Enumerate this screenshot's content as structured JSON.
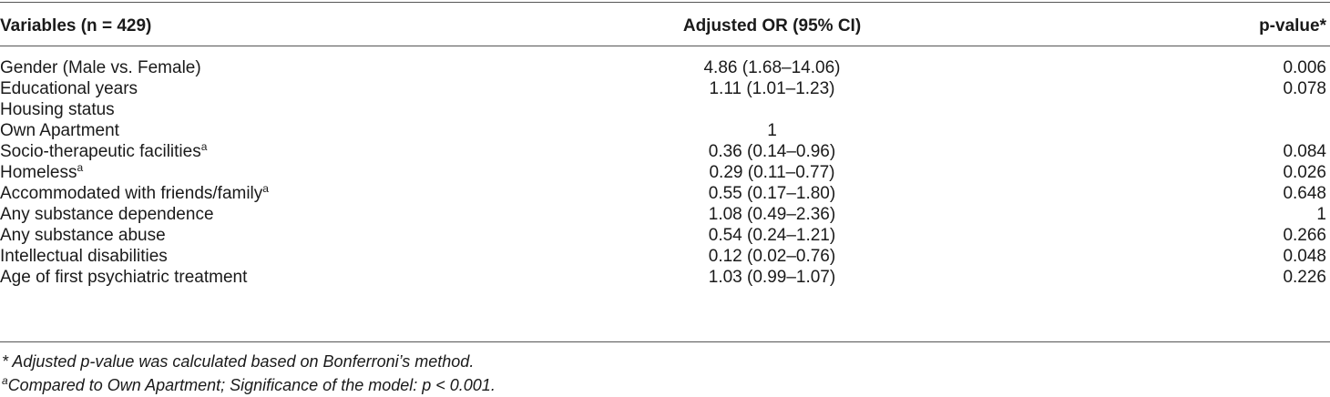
{
  "table": {
    "headers": [
      "Variables (n = 429)",
      "Adjusted OR (95% CI)",
      "p-value*"
    ],
    "rows": [
      {
        "variable": "Gender (Male vs. Female)",
        "or": "4.86 (1.68–14.06)",
        "p": "0.006"
      },
      {
        "variable": "Educational years",
        "or": "1.11 (1.01–1.23)",
        "p": "0.078"
      },
      {
        "variable": "Housing status",
        "or": "",
        "p": ""
      },
      {
        "variable": "Own Apartment",
        "or": "1",
        "p": ""
      },
      {
        "variable": "Socio-therapeutic facilities",
        "sup": "a",
        "or": "0.36 (0.14–0.96)",
        "p": "0.084"
      },
      {
        "variable": "Homeless",
        "sup": "a",
        "or": "0.29 (0.11–0.77)",
        "p": "0.026"
      },
      {
        "variable": "Accommodated with friends/family",
        "sup": "a",
        "or": "0.55 (0.17–1.80)",
        "p": "0.648"
      },
      {
        "variable": "Any substance dependence",
        "or": "1.08 (0.49–2.36)",
        "p": "1"
      },
      {
        "variable": "Any substance abuse",
        "or": "0.54 (0.24–1.21)",
        "p": "0.266"
      },
      {
        "variable": "Intellectual disabilities",
        "or": "0.12 (0.02–0.76)",
        "p": "0.048"
      },
      {
        "variable": "Age of first psychiatric treatment",
        "or": "1.03 (0.99–1.07)",
        "p": "0.226"
      }
    ]
  },
  "footnotes": {
    "star": "* Adjusted p-value was calculated based on Bonferroni’s method.",
    "a_marker": "a",
    "a_text": "Compared to Own Apartment; Significance of the model: p < 0.001."
  }
}
